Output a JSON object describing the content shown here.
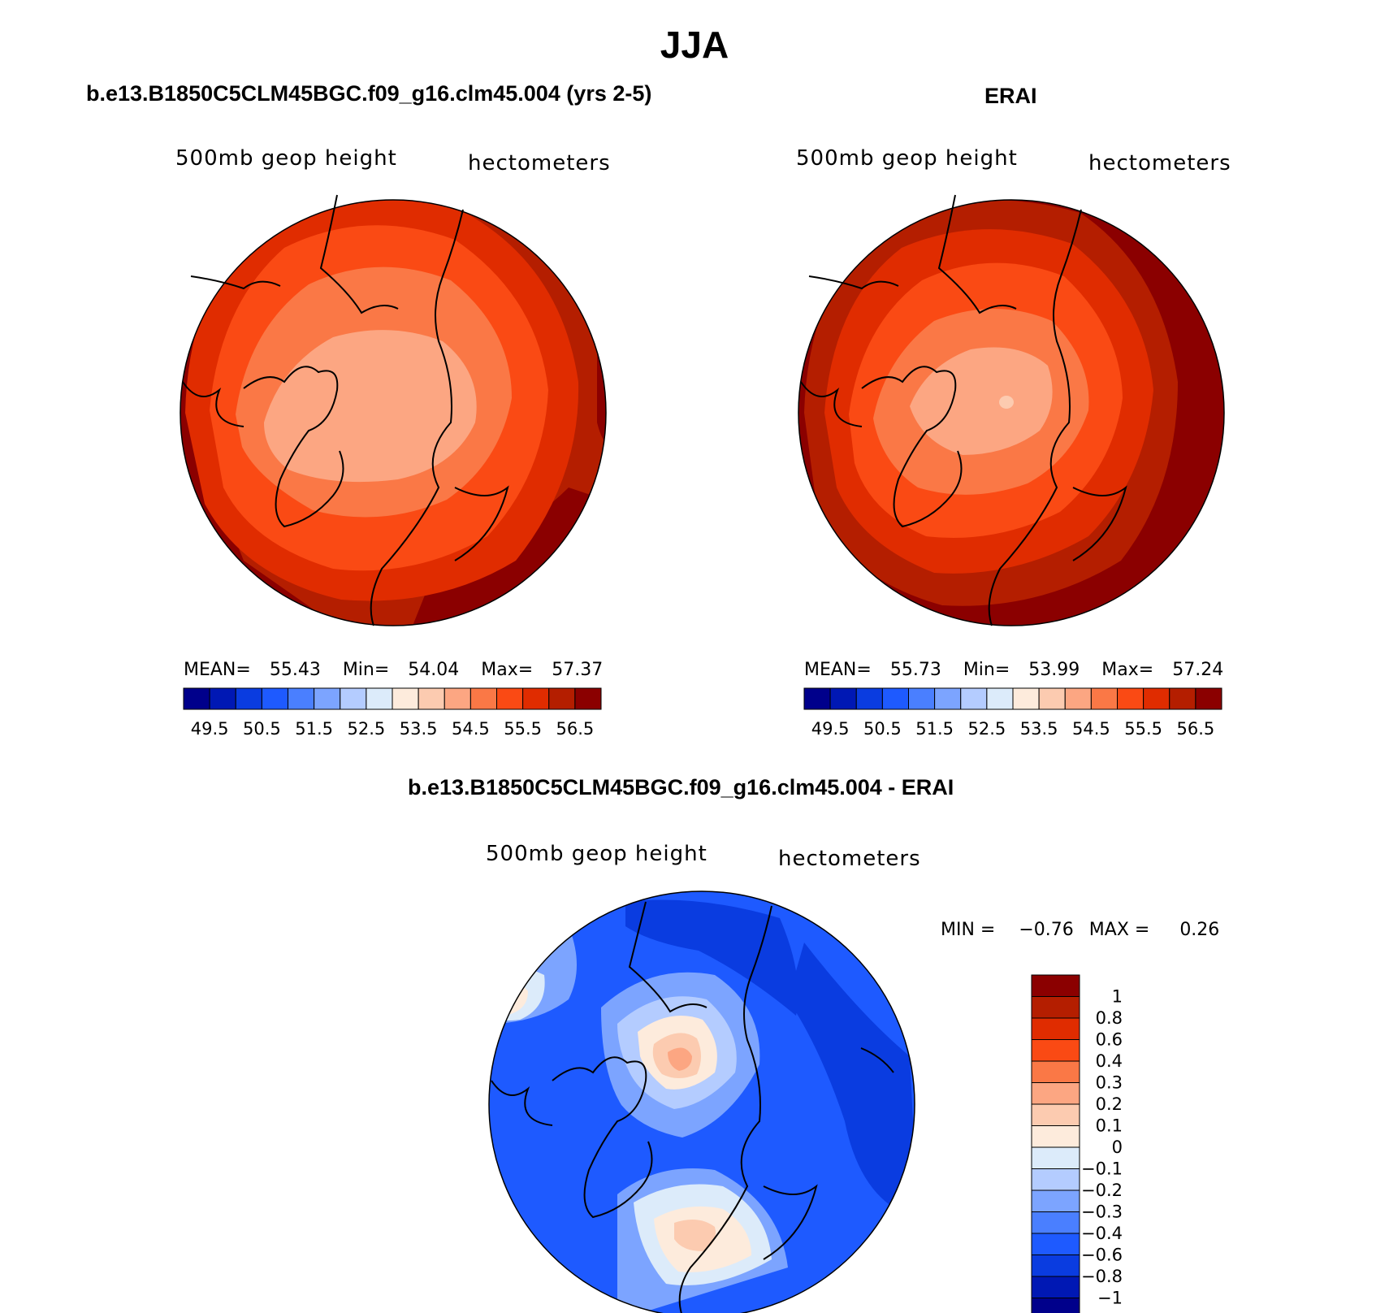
{
  "title": "JJA",
  "colors": {
    "scale": [
      "#00008b",
      "#0018b4",
      "#0a3ce0",
      "#1e5aff",
      "#4a7fff",
      "#7ca4ff",
      "#b4ccff",
      "#dcebfa",
      "#fdebdc",
      "#fccbb0",
      "#fca682",
      "#fa7846",
      "#fa4a14",
      "#e02c00",
      "#b41e00",
      "#8b0000"
    ],
    "diff_scale": [
      "#00008b",
      "#0018b4",
      "#0a3ce0",
      "#1e5aff",
      "#4a7fff",
      "#7ca4ff",
      "#b4ccff",
      "#dcebfa",
      "#fdebdc",
      "#fccbb0",
      "#fca682",
      "#fa7846",
      "#fa4a14",
      "#e02c00",
      "#b41e00",
      "#8b0000"
    ]
  },
  "panels": [
    {
      "title": "b.e13.B1850C5CLM45BGC.f09_g16.clm45.004 (yrs 2-5)",
      "variable": "500mb  geop  height",
      "units": "hectometers",
      "stats": {
        "mean_label": "MEAN=",
        "mean": "55.43",
        "min_label": "Min=",
        "min": "54.04",
        "max_label": "Max=",
        "max": "57.37"
      },
      "colorbar_labels": [
        "49.5",
        "50.5",
        "51.5",
        "52.5",
        "53.5",
        "54.5",
        "55.5",
        "56.5"
      ]
    },
    {
      "title": "ERAI",
      "variable": "500mb  geop  height",
      "units": "hectometers",
      "stats": {
        "mean_label": "MEAN=",
        "mean": "55.73",
        "min_label": "Min=",
        "min": "53.99",
        "max_label": "Max=",
        "max": "57.24"
      },
      "colorbar_labels": [
        "49.5",
        "50.5",
        "51.5",
        "52.5",
        "53.5",
        "54.5",
        "55.5",
        "56.5"
      ]
    }
  ],
  "difference": {
    "title": "b.e13.B1850C5CLM45BGC.f09_g16.clm45.004 - ERAI",
    "variable": "500mb  geop  height",
    "units": "hectometers",
    "min_label": "MIN =",
    "min": "−0.76",
    "max_label": "MAX =",
    "max": "0.26",
    "colorbar_labels": [
      "1",
      "0.8",
      "0.6",
      "0.4",
      "0.3",
      "0.2",
      "0.1",
      "0",
      "−0.1",
      "−0.2",
      "−0.3",
      "−0.4",
      "−0.6",
      "−0.8",
      "−1"
    ]
  },
  "chart_data": [
    {
      "type": "heatmap",
      "title": "b.e13.B1850C5CLM45BGC.f09_g16.clm45.004 (yrs 2-5)",
      "projection": "north-polar-stereographic",
      "levels": [
        49.5,
        50,
        50.5,
        51,
        51.5,
        52,
        52.5,
        53,
        53.5,
        54,
        54.5,
        55,
        55.5,
        56,
        56.5
      ],
      "mean": 55.43,
      "min": 54.04,
      "max": 57.37,
      "contour_bands": [
        54.0,
        54.5,
        55.0,
        55.5,
        56.0,
        56.5,
        57.0
      ]
    },
    {
      "type": "heatmap",
      "title": "ERAI",
      "projection": "north-polar-stereographic",
      "levels": [
        49.5,
        50,
        50.5,
        51,
        51.5,
        52,
        52.5,
        53,
        53.5,
        54,
        54.5,
        55,
        55.5,
        56,
        56.5
      ],
      "mean": 55.73,
      "min": 53.99,
      "max": 57.24,
      "contour_bands": [
        53.5,
        54.0,
        54.5,
        55.0,
        55.5,
        56.0,
        56.5,
        57.0
      ]
    },
    {
      "type": "heatmap",
      "title": "b.e13.B1850C5CLM45BGC.f09_g16.clm45.004 - ERAI",
      "projection": "north-polar-stereographic",
      "levels": [
        -1,
        -0.8,
        -0.6,
        -0.4,
        -0.3,
        -0.2,
        -0.1,
        0,
        0.1,
        0.2,
        0.3,
        0.4,
        0.6,
        0.8,
        1
      ],
      "min": -0.76,
      "max": 0.26
    }
  ]
}
